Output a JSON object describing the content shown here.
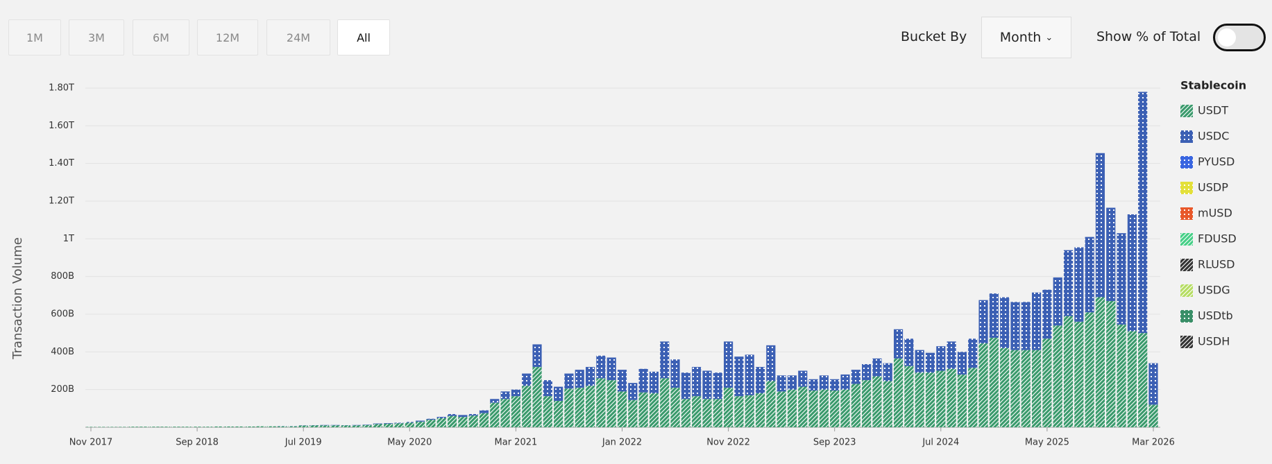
{
  "controls": {
    "ranges": [
      "1M",
      "3M",
      "6M",
      "12M",
      "24M",
      "All"
    ],
    "active_range": 5,
    "bucket_label": "Bucket By",
    "bucket_value": "Month",
    "toggle_label": "Show % of Total"
  },
  "chart_data": {
    "type": "bar",
    "stacked": true,
    "y_label": "Transaction Volume",
    "legend_title": "Stablecoin",
    "legend_position": "right",
    "grid": true,
    "categories": [
      "Nov 2017",
      null,
      null,
      null,
      null,
      null,
      null,
      null,
      null,
      null,
      "Sep 2018",
      null,
      null,
      null,
      null,
      null,
      null,
      null,
      null,
      null,
      "Jul 2019",
      null,
      null,
      null,
      null,
      null,
      null,
      null,
      null,
      null,
      "May 2020",
      null,
      null,
      null,
      null,
      null,
      null,
      null,
      null,
      null,
      "Mar 2021",
      null,
      null,
      null,
      null,
      null,
      null,
      null,
      null,
      null,
      "Jan 2022",
      null,
      null,
      null,
      null,
      null,
      null,
      null,
      null,
      null,
      "Nov 2022",
      null,
      null,
      null,
      null,
      null,
      null,
      null,
      null,
      null,
      "Sep 2023",
      null,
      null,
      null,
      null,
      null,
      null,
      null,
      null,
      null,
      "Jul 2024",
      null,
      null,
      null,
      null,
      null,
      null,
      null,
      null,
      null,
      "May 2025",
      null,
      null,
      null,
      null,
      null,
      null,
      null,
      null,
      null,
      "Mar 2026"
    ],
    "ylim": [
      0,
      1800
    ],
    "yticks": [
      {
        "value": 200,
        "label": "200B"
      },
      {
        "value": 400,
        "label": "400B"
      },
      {
        "value": 600,
        "label": "600B"
      },
      {
        "value": 800,
        "label": "800B"
      },
      {
        "value": 1000,
        "label": "1T"
      },
      {
        "value": 1200,
        "label": "1.20T"
      },
      {
        "value": 1400,
        "label": "1.40T"
      },
      {
        "value": 1600,
        "label": "1.60T"
      },
      {
        "value": 1800,
        "label": "1.80T"
      }
    ],
    "series": [
      {
        "name": "USDT",
        "color": "#3a9a6c",
        "pattern": "hatch",
        "values": [
          2,
          2,
          2,
          2,
          3,
          3,
          3,
          3,
          3,
          3,
          3,
          3,
          4,
          4,
          4,
          4,
          5,
          5,
          5,
          5,
          9,
          10,
          10,
          10,
          10,
          10,
          12,
          17,
          19,
          21,
          24,
          30,
          40,
          48,
          60,
          55,
          62,
          75,
          130,
          150,
          165,
          220,
          320,
          165,
          140,
          205,
          210,
          220,
          260,
          250,
          190,
          145,
          185,
          180,
          260,
          210,
          150,
          165,
          150,
          150,
          210,
          165,
          170,
          180,
          245,
          190,
          200,
          215,
          195,
          200,
          195,
          200,
          230,
          250,
          270,
          245,
          365,
          325,
          290,
          290,
          300,
          310,
          280,
          315,
          445,
          475,
          420,
          410,
          410,
          410,
          470,
          540,
          590,
          560,
          610,
          690,
          670,
          545,
          510,
          500,
          120
        ]
      },
      {
        "name": "USDC",
        "color": "#3c60b4",
        "pattern": "dots",
        "values": [
          0,
          0,
          0,
          0,
          0,
          0,
          0,
          0,
          0,
          0,
          0,
          0,
          0,
          0,
          0,
          0,
          0,
          0,
          1,
          1,
          1,
          1,
          2,
          2,
          1,
          2,
          2,
          3,
          3,
          3,
          4,
          5,
          5,
          7,
          10,
          10,
          8,
          15,
          20,
          40,
          35,
          65,
          120,
          85,
          75,
          80,
          95,
          100,
          120,
          120,
          115,
          90,
          125,
          115,
          195,
          150,
          140,
          155,
          150,
          140,
          245,
          210,
          215,
          140,
          190,
          85,
          75,
          85,
          60,
          75,
          60,
          80,
          75,
          85,
          95,
          95,
          155,
          145,
          120,
          105,
          130,
          145,
          120,
          155,
          230,
          235,
          270,
          255,
          255,
          305,
          260,
          255,
          350,
          395,
          400,
          765,
          495,
          485,
          620,
          1280,
          220
        ]
      },
      {
        "name": "PYUSD",
        "color": "#3a66e0",
        "pattern": "dots",
        "values": [
          0,
          0,
          0,
          0,
          0,
          0,
          0,
          0,
          0,
          0,
          0,
          0,
          0,
          0,
          0,
          0,
          0,
          0,
          0,
          0,
          0,
          0,
          0,
          0,
          0,
          0,
          0,
          0,
          0,
          0,
          0,
          0,
          0,
          0,
          0,
          0,
          0,
          0,
          0,
          0,
          0,
          0,
          0,
          0,
          0,
          0,
          0,
          0,
          0,
          0,
          0,
          0,
          0,
          0,
          0,
          0,
          0,
          0,
          0,
          0,
          0,
          0,
          0,
          0,
          0,
          0,
          0,
          0,
          0,
          0,
          0,
          0,
          0,
          0,
          0,
          0,
          0,
          0,
          0,
          0,
          0,
          0,
          0,
          0,
          0,
          0,
          0,
          0,
          0,
          0,
          0,
          0,
          0,
          0,
          0,
          0,
          0,
          0,
          0,
          0,
          0
        ]
      },
      {
        "name": "USDP",
        "color": "#e3e03a",
        "pattern": "dots",
        "values": [
          0,
          0,
          0,
          0,
          0,
          0,
          0,
          0,
          0,
          0,
          0,
          0,
          0,
          0,
          0,
          0,
          0,
          0,
          0,
          0,
          0,
          0,
          0,
          0,
          0,
          0,
          0,
          0,
          0,
          0,
          0,
          0,
          0,
          0,
          0,
          0,
          0,
          0,
          0,
          0,
          0,
          0,
          0,
          0,
          0,
          0,
          0,
          0,
          0,
          0,
          0,
          0,
          0,
          0,
          0,
          0,
          0,
          0,
          0,
          0,
          0,
          0,
          0,
          0,
          0,
          0,
          0,
          0,
          0,
          0,
          0,
          0,
          0,
          0,
          0,
          0,
          0,
          0,
          0,
          0,
          0,
          0,
          0,
          0,
          0,
          0,
          0,
          0,
          0,
          0,
          0,
          0,
          0,
          0,
          0,
          0,
          0,
          0,
          0,
          0,
          0
        ]
      },
      {
        "name": "mUSD",
        "color": "#e8582a",
        "pattern": "dots",
        "values": [
          0,
          0,
          0,
          0,
          0,
          0,
          0,
          0,
          0,
          0,
          0,
          0,
          0,
          0,
          0,
          0,
          0,
          0,
          0,
          0,
          0,
          0,
          0,
          0,
          0,
          0,
          0,
          0,
          0,
          0,
          0,
          0,
          0,
          0,
          0,
          0,
          0,
          0,
          0,
          0,
          0,
          0,
          0,
          0,
          0,
          0,
          0,
          0,
          0,
          0,
          0,
          0,
          0,
          0,
          0,
          0,
          0,
          0,
          0,
          0,
          0,
          0,
          0,
          0,
          0,
          0,
          0,
          0,
          0,
          0,
          0,
          0,
          0,
          0,
          0,
          0,
          0,
          0,
          0,
          0,
          0,
          0,
          0,
          0,
          0,
          0,
          0,
          0,
          0,
          0,
          0,
          0,
          0,
          0,
          0,
          0,
          0,
          0,
          0,
          0,
          0
        ]
      },
      {
        "name": "FDUSD",
        "color": "#44cf86",
        "pattern": "hatch",
        "values": [
          0,
          0,
          0,
          0,
          0,
          0,
          0,
          0,
          0,
          0,
          0,
          0,
          0,
          0,
          0,
          0,
          0,
          0,
          0,
          0,
          0,
          0,
          0,
          0,
          0,
          0,
          0,
          0,
          0,
          0,
          0,
          0,
          0,
          0,
          0,
          0,
          0,
          0,
          0,
          0,
          0,
          0,
          0,
          0,
          0,
          0,
          0,
          0,
          0,
          0,
          0,
          0,
          0,
          0,
          0,
          0,
          0,
          0,
          0,
          0,
          0,
          0,
          0,
          0,
          0,
          0,
          0,
          0,
          0,
          0,
          0,
          0,
          0,
          0,
          0,
          0,
          0,
          0,
          0,
          0,
          0,
          0,
          0,
          0,
          0,
          0,
          0,
          0,
          0,
          0,
          0,
          0,
          0,
          0,
          0,
          0,
          0,
          0,
          0,
          0,
          0
        ]
      },
      {
        "name": "RLUSD",
        "color": "#333333",
        "pattern": "hatch",
        "values": [
          0,
          0,
          0,
          0,
          0,
          0,
          0,
          0,
          0,
          0,
          0,
          0,
          0,
          0,
          0,
          0,
          0,
          0,
          0,
          0,
          0,
          0,
          0,
          0,
          0,
          0,
          0,
          0,
          0,
          0,
          0,
          0,
          0,
          0,
          0,
          0,
          0,
          0,
          0,
          0,
          0,
          0,
          0,
          0,
          0,
          0,
          0,
          0,
          0,
          0,
          0,
          0,
          0,
          0,
          0,
          0,
          0,
          0,
          0,
          0,
          0,
          0,
          0,
          0,
          0,
          0,
          0,
          0,
          0,
          0,
          0,
          0,
          0,
          0,
          0,
          0,
          0,
          0,
          0,
          0,
          0,
          0,
          0,
          0,
          0,
          0,
          0,
          0,
          0,
          0,
          0,
          0,
          0,
          0,
          0,
          0,
          0,
          0,
          0,
          0,
          0
        ]
      },
      {
        "name": "USDG",
        "color": "#b5dd62",
        "pattern": "hatch",
        "values": [
          0,
          0,
          0,
          0,
          0,
          0,
          0,
          0,
          0,
          0,
          0,
          0,
          0,
          0,
          0,
          0,
          0,
          0,
          0,
          0,
          0,
          0,
          0,
          0,
          0,
          0,
          0,
          0,
          0,
          0,
          0,
          0,
          0,
          0,
          0,
          0,
          0,
          0,
          0,
          0,
          0,
          0,
          0,
          0,
          0,
          0,
          0,
          0,
          0,
          0,
          0,
          0,
          0,
          0,
          0,
          0,
          0,
          0,
          0,
          0,
          0,
          0,
          0,
          0,
          0,
          0,
          0,
          0,
          0,
          0,
          0,
          0,
          0,
          0,
          0,
          0,
          0,
          0,
          0,
          0,
          0,
          0,
          0,
          0,
          0,
          0,
          0,
          0,
          0,
          0,
          0,
          0,
          0,
          0,
          0,
          0,
          0,
          0,
          0,
          0,
          0
        ]
      },
      {
        "name": "USDtb",
        "color": "#3a8f68",
        "pattern": "dots",
        "values": [
          0,
          0,
          0,
          0,
          0,
          0,
          0,
          0,
          0,
          0,
          0,
          0,
          0,
          0,
          0,
          0,
          0,
          0,
          0,
          0,
          0,
          0,
          0,
          0,
          0,
          0,
          0,
          0,
          0,
          0,
          0,
          0,
          0,
          0,
          0,
          0,
          0,
          0,
          0,
          0,
          0,
          0,
          0,
          0,
          0,
          0,
          0,
          0,
          0,
          0,
          0,
          0,
          0,
          0,
          0,
          0,
          0,
          0,
          0,
          0,
          0,
          0,
          0,
          0,
          0,
          0,
          0,
          0,
          0,
          0,
          0,
          0,
          0,
          0,
          0,
          0,
          0,
          0,
          0,
          0,
          0,
          0,
          0,
          0,
          0,
          0,
          0,
          0,
          0,
          0,
          0,
          0,
          0,
          0,
          0,
          0,
          0,
          0,
          0,
          0,
          0
        ]
      },
      {
        "name": "USDH",
        "color": "#333333",
        "pattern": "hatch",
        "values": [
          0,
          0,
          0,
          0,
          0,
          0,
          0,
          0,
          0,
          0,
          0,
          0,
          0,
          0,
          0,
          0,
          0,
          0,
          0,
          0,
          0,
          0,
          0,
          0,
          0,
          0,
          0,
          0,
          0,
          0,
          0,
          0,
          0,
          0,
          0,
          0,
          0,
          0,
          0,
          0,
          0,
          0,
          0,
          0,
          0,
          0,
          0,
          0,
          0,
          0,
          0,
          0,
          0,
          0,
          0,
          0,
          0,
          0,
          0,
          0,
          0,
          0,
          0,
          0,
          0,
          0,
          0,
          0,
          0,
          0,
          0,
          0,
          0,
          0,
          0,
          0,
          0,
          0,
          0,
          0,
          0,
          0,
          0,
          0,
          0,
          0,
          0,
          0,
          0,
          0,
          0,
          0,
          0,
          0,
          0,
          0,
          0,
          0,
          0,
          0,
          0
        ]
      }
    ]
  }
}
